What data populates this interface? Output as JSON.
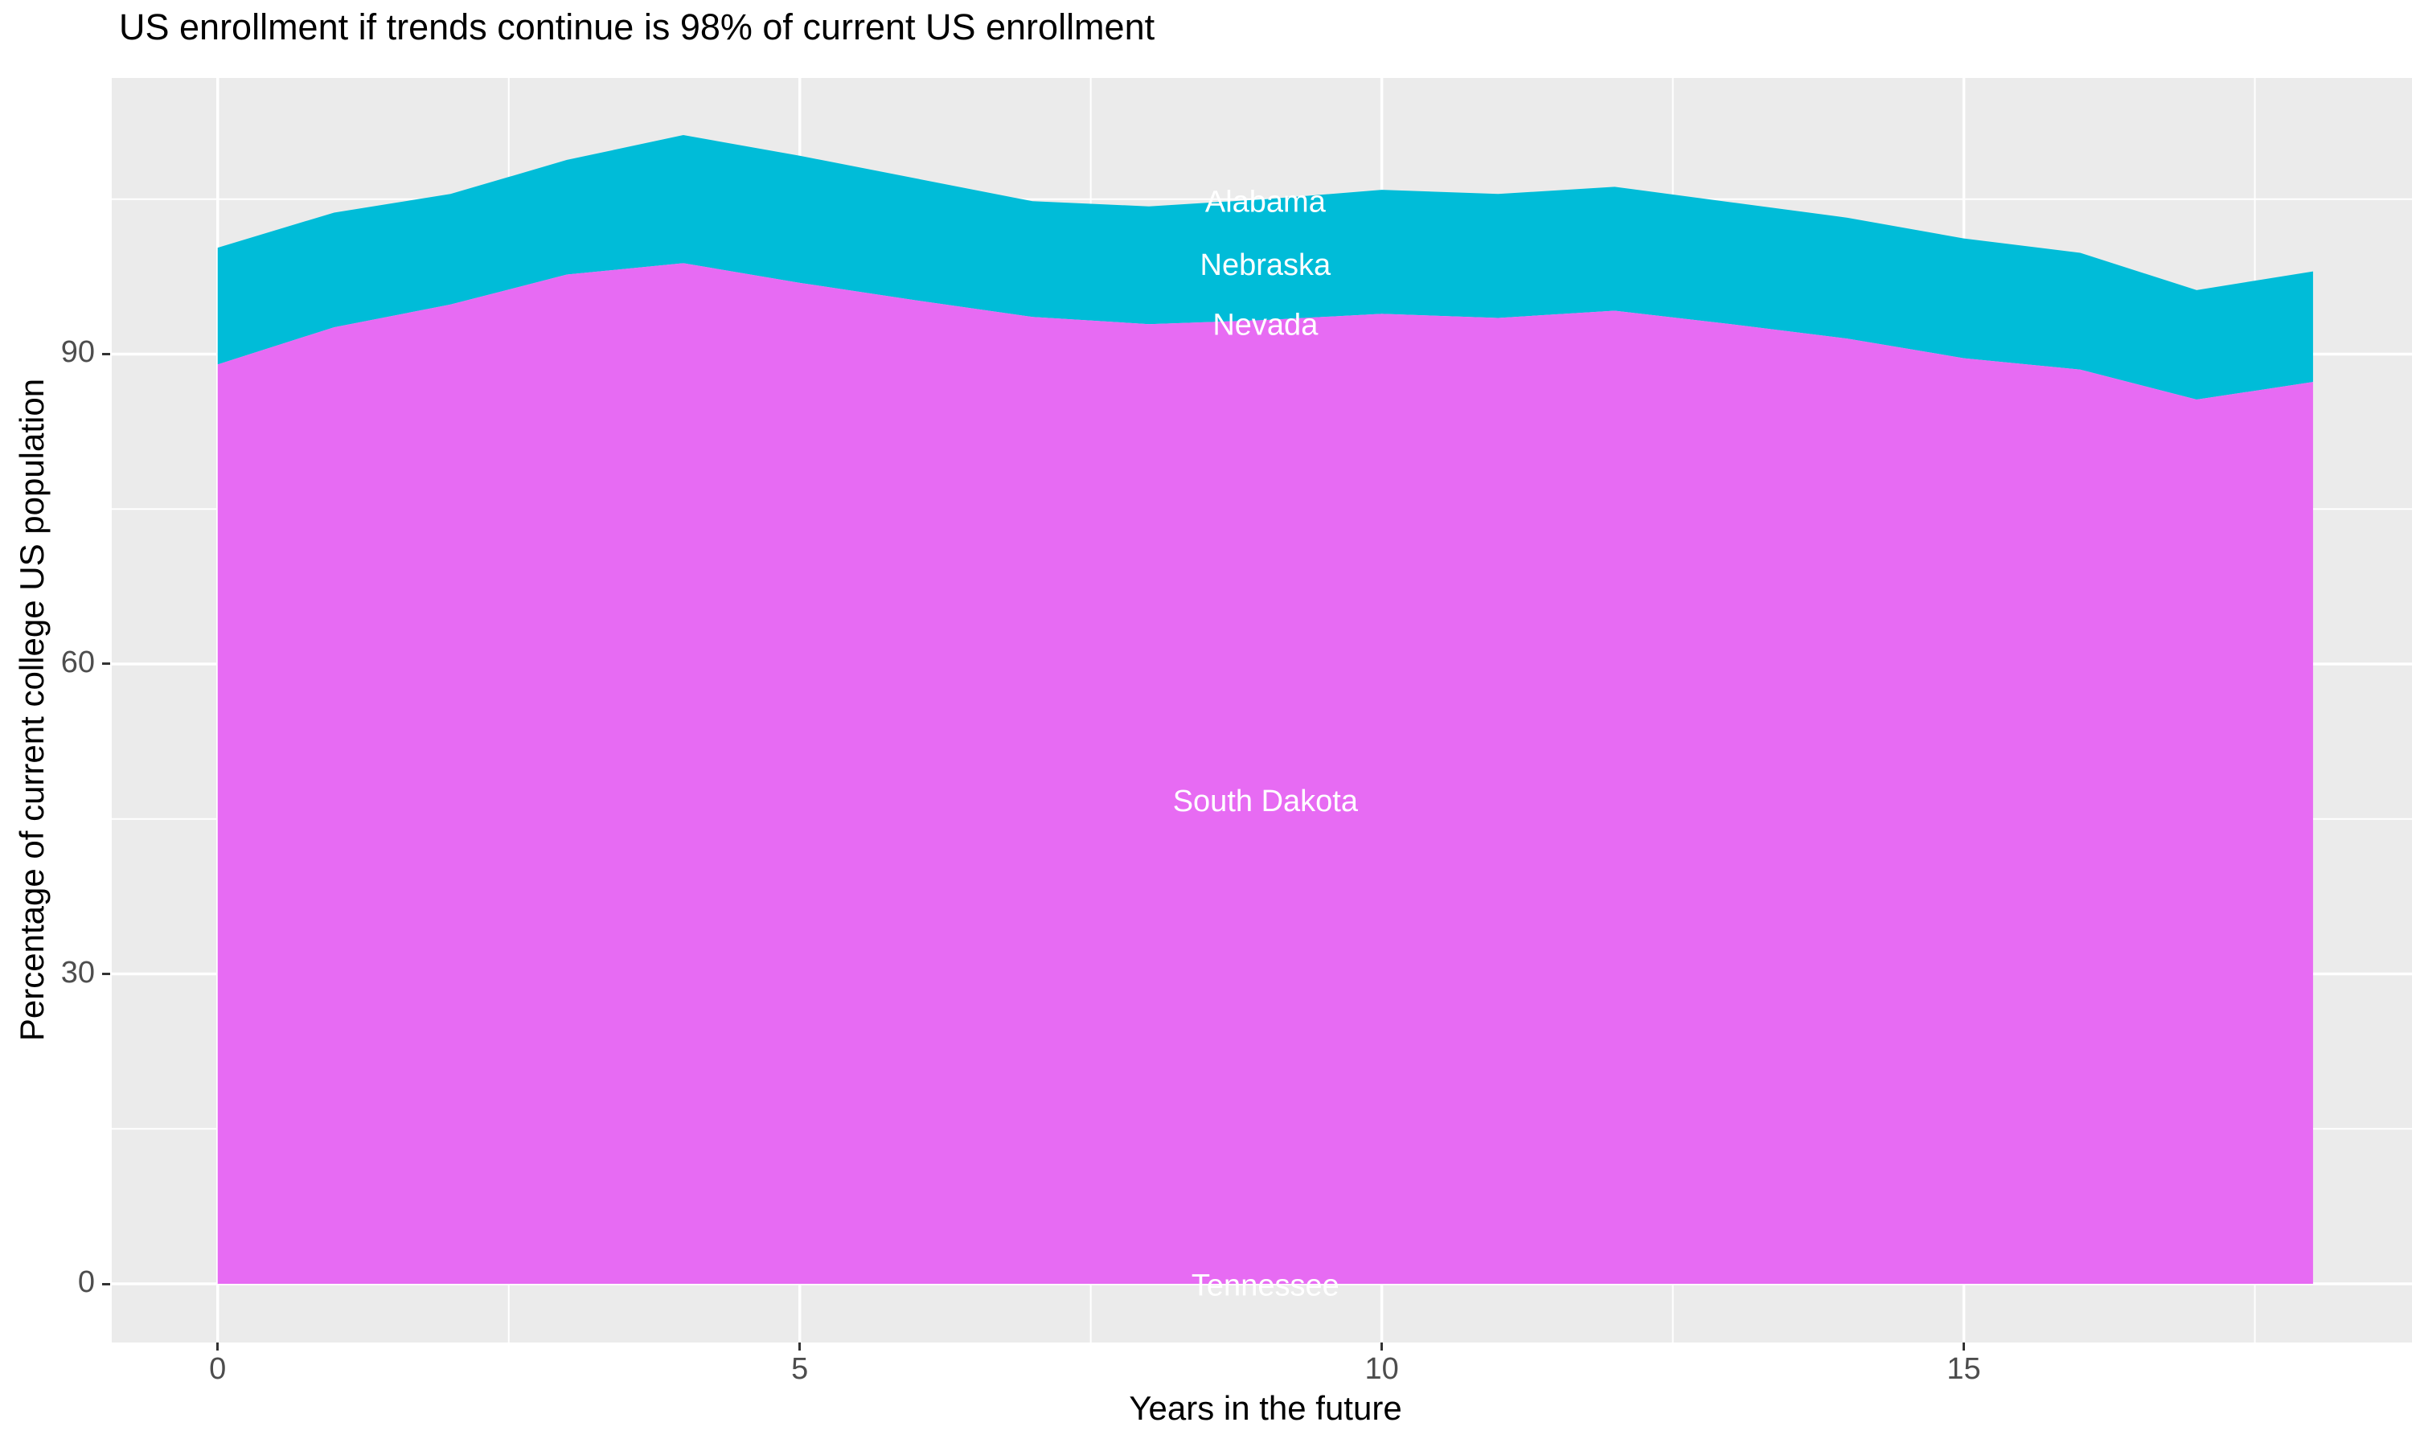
{
  "chart_data": {
    "type": "area",
    "stacked": true,
    "title": "US enrollment if trends continue is 98% of current US enrollment",
    "xlabel": "Years in the future",
    "ylabel": "Percentage of current college US population",
    "x": [
      0,
      1,
      2,
      3,
      4,
      5,
      6,
      7,
      8,
      9,
      10,
      11,
      12,
      13,
      14,
      15,
      16,
      17,
      18
    ],
    "xlim": [
      -0.91,
      18.85
    ],
    "ylim": [
      -5.68,
      116.73
    ],
    "x_ticks_major": [
      0,
      5,
      10,
      15
    ],
    "x_ticks_minor": [
      2.5,
      7.5,
      12.5,
      17.5
    ],
    "y_ticks_major": [
      0,
      30,
      60,
      90
    ],
    "y_ticks_minor": [
      15,
      45,
      75,
      105
    ],
    "grid": "major+minor",
    "legend": "none",
    "series": [
      {
        "name": "Alabama + Nebraska + Nevada (cyan band)",
        "color": "#00BCD8",
        "upper": [
          100.3,
          103.7,
          105.5,
          108.8,
          111.2,
          109.2,
          107.0,
          104.8,
          104.3,
          105.0,
          105.9,
          105.5,
          106.2,
          104.7,
          103.2,
          101.2,
          99.8,
          96.2,
          98.0
        ],
        "lower": [
          89.0,
          92.6,
          94.8,
          97.7,
          98.8,
          96.9,
          95.2,
          93.6,
          92.9,
          93.3,
          93.9,
          93.5,
          94.2,
          92.9,
          91.5,
          89.6,
          88.5,
          85.6,
          87.3
        ]
      },
      {
        "name": "South Dakota + Tennessee (magenta band)",
        "color": "#E76BF3",
        "upper": [
          89.0,
          92.6,
          94.8,
          97.7,
          98.8,
          96.9,
          95.2,
          93.6,
          92.9,
          93.3,
          93.9,
          93.5,
          94.2,
          92.9,
          91.5,
          89.6,
          88.5,
          85.6,
          87.3
        ],
        "lower": [
          0,
          0,
          0,
          0,
          0,
          0,
          0,
          0,
          0,
          0,
          0,
          0,
          0,
          0,
          0,
          0,
          0,
          0,
          0
        ]
      }
    ],
    "state_labels": [
      {
        "text": "Alabama",
        "x": 9,
        "y": 104.7,
        "color": "#FFFFFF"
      },
      {
        "text": "Nebraska",
        "x": 9,
        "y": 98.6,
        "color": "#FFFFFF"
      },
      {
        "text": "Nevada",
        "x": 9,
        "y": 92.8,
        "color": "#FFFFFF"
      },
      {
        "text": "South Dakota",
        "x": 9,
        "y": 46.7,
        "color": "#FFFFFF"
      },
      {
        "text": "Tennessee",
        "x": 9,
        "y": -0.2,
        "color": "#FFFFFF"
      }
    ]
  },
  "style": {
    "panel_bg": "#EBEBEB",
    "grid_color": "#FFFFFF",
    "tick_color": "#333333",
    "tick_label_color": "#4D4D4D",
    "title_color": "#000000"
  }
}
